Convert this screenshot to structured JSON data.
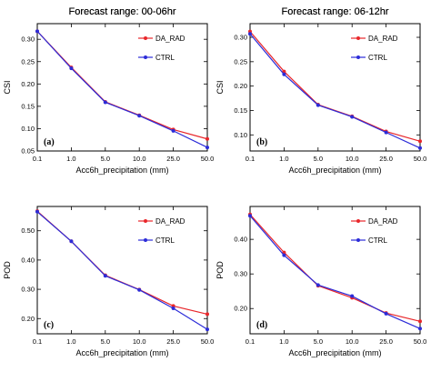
{
  "chart_data": [
    {
      "type": "line",
      "title": "Forecast range: 00-06hr",
      "xlabel": "Acc6h_precipitation (mm)",
      "ylabel": "CSI",
      "panel_label": "(a)",
      "categories": [
        "0.1",
        "1.0",
        "5.0",
        "10.0",
        "25.0",
        "50.0"
      ],
      "yticks": [
        "0.05",
        "0.10",
        "0.15",
        "0.20",
        "0.25",
        "0.30"
      ],
      "ylim": [
        0.05,
        0.335
      ],
      "legend_position": "top-right",
      "series": [
        {
          "name": "DA_RAD",
          "color": "#e8262a",
          "values": [
            0.318,
            0.237,
            0.16,
            0.13,
            0.098,
            0.077
          ]
        },
        {
          "name": "CTRL",
          "color": "#2c2cd8",
          "values": [
            0.318,
            0.235,
            0.159,
            0.129,
            0.095,
            0.058
          ]
        }
      ]
    },
    {
      "type": "line",
      "title": "Forecast range: 06-12hr",
      "xlabel": "Acc6h_precipitation (mm)",
      "ylabel": "CSI",
      "panel_label": "(b)",
      "categories": [
        "0.1",
        "1.0",
        "5.0",
        "10.0",
        "25.0",
        "50.0"
      ],
      "yticks": [
        "0.10",
        "0.15",
        "0.20",
        "0.25",
        "0.30"
      ],
      "ylim": [
        0.067,
        0.328
      ],
      "legend_position": "top-right",
      "series": [
        {
          "name": "DA_RAD",
          "color": "#e8262a",
          "values": [
            0.312,
            0.23,
            0.162,
            0.138,
            0.107,
            0.087
          ]
        },
        {
          "name": "CTRL",
          "color": "#2c2cd8",
          "values": [
            0.307,
            0.224,
            0.161,
            0.137,
            0.105,
            0.073
          ]
        }
      ]
    },
    {
      "type": "line",
      "title": "Forecast range: 00-06hr",
      "xlabel": "Acc6h_precipitation (mm)",
      "ylabel": "POD",
      "panel_label": "(c)",
      "categories": [
        "0.1",
        "1.0",
        "5.0",
        "10.0",
        "25.0",
        "50.0"
      ],
      "yticks": [
        "0.20",
        "0.30",
        "0.40",
        "0.50"
      ],
      "ylim": [
        0.148,
        0.583
      ],
      "legend_position": "top-right",
      "series": [
        {
          "name": "DA_RAD",
          "color": "#e8262a",
          "values": [
            0.567,
            0.464,
            0.348,
            0.299,
            0.243,
            0.215
          ]
        },
        {
          "name": "CTRL",
          "color": "#2c2cd8",
          "values": [
            0.565,
            0.464,
            0.346,
            0.298,
            0.235,
            0.163
          ]
        }
      ]
    },
    {
      "type": "line",
      "title": "Forecast range: 06-12hr",
      "xlabel": "Acc6h_precipitation (mm)",
      "ylabel": "POD",
      "panel_label": "(d)",
      "categories": [
        "0.1",
        "1.0",
        "5.0",
        "10.0",
        "25.0",
        "50.0"
      ],
      "yticks": [
        "0.20",
        "0.30",
        "0.40"
      ],
      "ylim": [
        0.127,
        0.495
      ],
      "legend_position": "top-right",
      "series": [
        {
          "name": "DA_RAD",
          "color": "#e8262a",
          "values": [
            0.472,
            0.362,
            0.266,
            0.231,
            0.187,
            0.163
          ]
        },
        {
          "name": "CTRL",
          "color": "#2c2cd8",
          "values": [
            0.468,
            0.354,
            0.268,
            0.236,
            0.185,
            0.142
          ]
        }
      ]
    }
  ]
}
